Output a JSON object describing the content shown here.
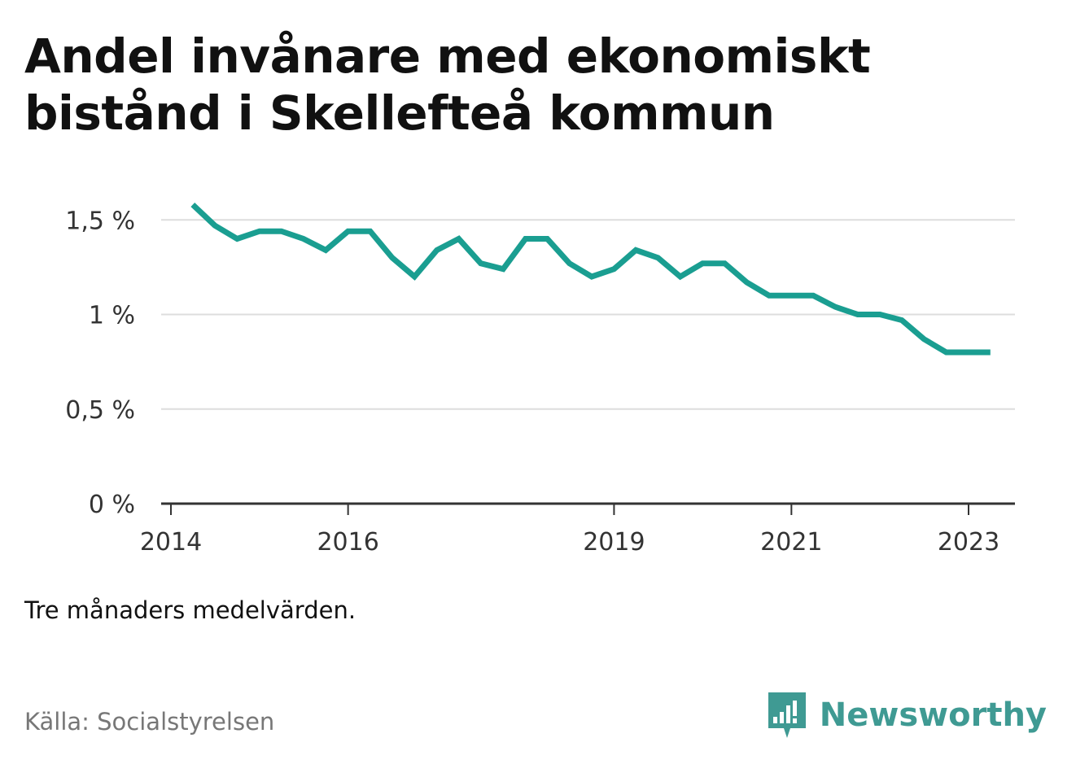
{
  "title": "Andel invånare med ekonomiskt bistånd i Skellefteå kommun",
  "note": "Tre månaders medelvärden.",
  "source": "Källa: Socialstyrelsen",
  "brand": {
    "name": "Newsworthy",
    "icon": "bar-chart-speech-bubble-icon",
    "color": "#3f9a93"
  },
  "colors": {
    "line": "#1a9e91",
    "grid": "#dddddd",
    "axis": "#333333"
  },
  "chart_data": {
    "type": "line",
    "title": "Andel invånare med ekonomiskt bistånd i Skellefteå kommun",
    "xlabel": "",
    "ylabel": "",
    "xlim": [
      "2014-01-01",
      "2023-06-01"
    ],
    "ylim": [
      0,
      1.6
    ],
    "y_ticks": [
      0,
      0.5,
      1,
      1.5
    ],
    "y_tick_labels": [
      "0 %",
      "0,5 %",
      "1 %",
      "1,5 %"
    ],
    "x_ticks": [
      "2014-01-01",
      "2016-01-01",
      "2019-01-01",
      "2021-01-01",
      "2023-01-01"
    ],
    "x_tick_labels": [
      "2014",
      "2016",
      "2019",
      "2021",
      "2023"
    ],
    "grid": true,
    "series": [
      {
        "x": [
          "2014-04-01",
          "2014-07-01",
          "2014-10-01",
          "2015-01-01",
          "2015-04-01",
          "2015-07-01",
          "2015-10-01",
          "2016-01-01",
          "2016-04-01",
          "2016-07-01",
          "2016-10-01",
          "2017-01-01",
          "2017-04-01",
          "2017-07-01",
          "2017-10-01",
          "2018-01-01",
          "2018-04-01",
          "2018-07-01",
          "2018-10-01",
          "2019-01-01",
          "2019-04-01",
          "2019-07-01",
          "2019-10-01",
          "2020-01-01",
          "2020-04-01",
          "2020-07-01",
          "2020-10-01",
          "2021-01-01",
          "2021-04-01",
          "2021-07-01",
          "2021-10-01",
          "2022-01-01",
          "2022-04-01",
          "2022-07-01",
          "2022-10-01",
          "2023-01-01",
          "2023-04-01"
        ],
        "values": [
          1.58,
          1.47,
          1.4,
          1.44,
          1.44,
          1.4,
          1.34,
          1.44,
          1.44,
          1.3,
          1.2,
          1.34,
          1.4,
          1.27,
          1.24,
          1.4,
          1.4,
          1.27,
          1.2,
          1.24,
          1.34,
          1.3,
          1.2,
          1.27,
          1.27,
          1.17,
          1.1,
          1.1,
          1.1,
          1.04,
          1.0,
          1.0,
          0.97,
          0.87,
          0.8,
          0.8,
          0.8
        ]
      }
    ]
  }
}
